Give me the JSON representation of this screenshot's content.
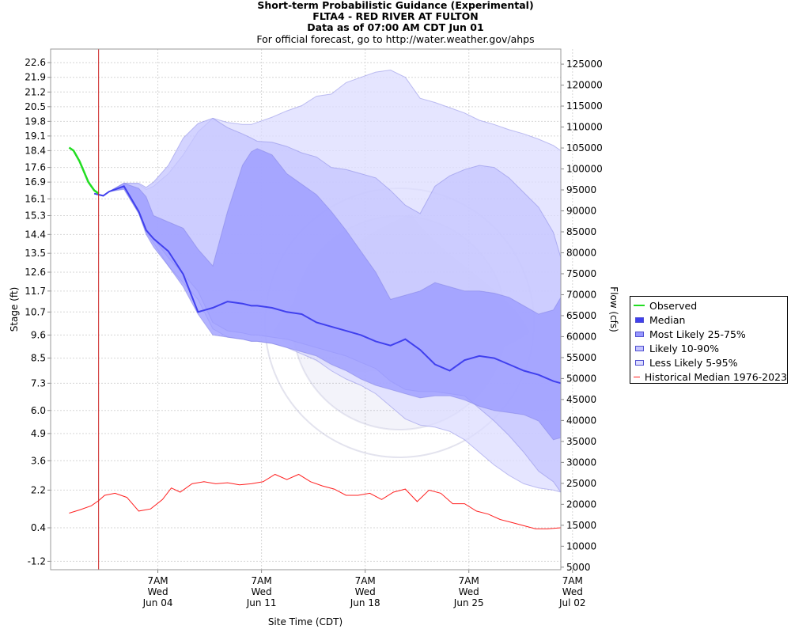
{
  "header": {
    "title": "Short-term Probabilistic Guidance (Experimental)",
    "station": "FLTA4 - RED RIVER AT FULTON",
    "data_as_of": "Data as of 07:00 AM CDT Jun 01",
    "official_note": "For official forecast, go to http://water.weather.gov/ahps"
  },
  "chart_data": {
    "type": "area",
    "title": "Short-term Probabilistic Guidance (Experimental)",
    "subtitle": "FLTA4 - RED RIVER AT FULTON",
    "xlabel": "Site Time (CDT)",
    "ylabel": "Stage (ft)",
    "y2label": "Flow (cfs)",
    "xlim_days_from_may30": [
      -0.95,
      33.5
    ],
    "ylim_stage": [
      -1.6,
      23.25
    ],
    "ylim_flow": [
      4400,
      128600
    ],
    "grid": true,
    "legend_position": "right",
    "y_ticks": [
      -1.2,
      0.4,
      2.2,
      3.6,
      4.9,
      6.0,
      7.3,
      8.5,
      9.6,
      10.7,
      11.7,
      12.6,
      13.5,
      14.4,
      15.3,
      16.1,
      16.9,
      17.6,
      18.4,
      19.1,
      19.8,
      20.5,
      21.2,
      21.9,
      22.6
    ],
    "y2_ticks": [
      5000,
      10000,
      15000,
      20000,
      25000,
      30000,
      35000,
      40000,
      45000,
      50000,
      55000,
      60000,
      65000,
      70000,
      75000,
      80000,
      85000,
      90000,
      95000,
      100000,
      105000,
      110000,
      115000,
      120000,
      125000
    ],
    "x_ticks": [
      {
        "day": 6.29,
        "lines": [
          "7AM",
          "Wed",
          "Jun 04"
        ]
      },
      {
        "day": 13.29,
        "lines": [
          "7AM",
          "Wed",
          "Jun 11"
        ]
      },
      {
        "day": 20.29,
        "lines": [
          "7AM",
          "Wed",
          "Jun 18"
        ]
      },
      {
        "day": 27.29,
        "lines": [
          "7AM",
          "Wed",
          "Jun 25"
        ]
      },
      {
        "day": 34.29,
        "lines": [
          "7AM",
          "Wed",
          "Jul 02"
        ]
      }
    ],
    "current_time_day": 2.29,
    "x": [
      0.3,
      1.0,
      2.0,
      2.6,
      3.0,
      4.0,
      5.0,
      5.5,
      6.0,
      7.0,
      8.0,
      9.0,
      10.0,
      11.0,
      12.0,
      12.6,
      13.0,
      14.0,
      15.0,
      16.0,
      17.0,
      18.0,
      19.0,
      20.0,
      21.0,
      22.0,
      23.0,
      24.0,
      25.0,
      26.0,
      27.0,
      28.0,
      29.0,
      30.0,
      31.0,
      32.0,
      33.0,
      33.5
    ],
    "series": [
      {
        "name": "Observed",
        "color": "#22dd22",
        "x": [
          0.3,
          0.6,
          1.0,
          1.3,
          1.6,
          2.0,
          2.3
        ],
        "values": [
          18.55,
          18.4,
          17.9,
          17.4,
          16.9,
          16.5,
          16.35
        ]
      },
      {
        "name": "Less Likely 5-95%",
        "color": "#dcdcff",
        "upper": [
          null,
          null,
          16.35,
          16.25,
          16.45,
          16.85,
          16.8,
          16.55,
          16.7,
          17.3,
          18.2,
          19.3,
          19.95,
          19.75,
          19.65,
          19.65,
          19.75,
          20.0,
          20.3,
          20.55,
          21.0,
          21.1,
          21.65,
          21.9,
          22.15,
          22.25,
          21.9,
          20.9,
          20.7,
          20.45,
          20.2,
          19.85,
          19.65,
          19.4,
          19.2,
          18.95,
          18.65,
          18.4
        ],
        "lower": [
          null,
          null,
          16.35,
          16.25,
          16.45,
          16.6,
          15.4,
          14.5,
          14.0,
          12.9,
          12.1,
          11.3,
          9.9,
          9.5,
          9.4,
          9.3,
          9.3,
          9.2,
          9.0,
          8.7,
          8.4,
          7.9,
          7.5,
          7.2,
          6.8,
          6.2,
          5.6,
          5.3,
          5.2,
          5.0,
          4.6,
          4.0,
          3.4,
          2.9,
          2.5,
          2.3,
          2.2,
          2.1
        ]
      },
      {
        "name": "Likely 10-90%",
        "color": "#c4c4ff",
        "upper": [
          null,
          null,
          16.35,
          16.25,
          16.45,
          16.85,
          16.85,
          16.65,
          16.9,
          17.7,
          19.0,
          19.7,
          19.95,
          19.5,
          19.2,
          19.0,
          18.85,
          18.8,
          18.6,
          18.3,
          18.1,
          17.6,
          17.5,
          17.3,
          17.1,
          16.5,
          15.8,
          15.4,
          16.7,
          17.2,
          17.5,
          17.7,
          17.6,
          17.1,
          16.4,
          15.7,
          14.5,
          13.3
        ],
        "lower": [
          null,
          null,
          16.35,
          16.25,
          16.45,
          16.6,
          15.45,
          14.7,
          14.2,
          13.3,
          12.5,
          11.7,
          10.2,
          9.8,
          9.7,
          9.6,
          9.6,
          9.5,
          9.4,
          9.2,
          9.0,
          8.8,
          8.6,
          8.3,
          8.0,
          7.4,
          7.0,
          6.9,
          6.9,
          6.8,
          6.7,
          6.1,
          5.5,
          4.8,
          4.0,
          3.1,
          2.6,
          2.1
        ]
      },
      {
        "name": "Most Likely 25-75%",
        "color": "#9898ff",
        "upper": [
          null,
          null,
          16.35,
          16.25,
          16.45,
          16.85,
          16.6,
          16.2,
          15.3,
          15.0,
          14.7,
          13.7,
          12.9,
          15.5,
          17.7,
          18.35,
          18.5,
          18.2,
          17.3,
          16.8,
          16.3,
          15.5,
          14.6,
          13.6,
          12.6,
          11.3,
          11.5,
          11.7,
          12.1,
          11.9,
          11.7,
          11.7,
          11.6,
          11.4,
          11.0,
          10.6,
          10.8,
          11.4
        ],
        "lower": [
          null,
          null,
          16.35,
          16.25,
          16.45,
          16.55,
          15.4,
          14.4,
          13.8,
          12.9,
          11.9,
          10.6,
          9.6,
          9.5,
          9.4,
          9.3,
          9.3,
          9.2,
          9.0,
          8.8,
          8.6,
          8.2,
          7.9,
          7.5,
          7.2,
          7.0,
          6.8,
          6.6,
          6.7,
          6.7,
          6.5,
          6.2,
          6.0,
          5.9,
          5.8,
          5.5,
          4.6,
          4.7
        ]
      },
      {
        "name": "Median",
        "color": "#4040ee",
        "values": [
          null,
          null,
          16.35,
          16.25,
          16.45,
          16.7,
          15.5,
          14.6,
          14.2,
          13.6,
          12.5,
          10.7,
          10.9,
          11.2,
          11.1,
          11.0,
          11.0,
          10.9,
          10.7,
          10.6,
          10.2,
          10.0,
          9.8,
          9.6,
          9.3,
          9.1,
          9.4,
          8.9,
          8.2,
          7.9,
          8.4,
          8.6,
          8.5,
          8.2,
          7.9,
          7.7,
          7.4,
          7.3
        ]
      },
      {
        "name": "Historical Median 1976-2023",
        "color": "#ff2020",
        "x": [
          0.3,
          1.0,
          1.8,
          2.3,
          2.7,
          3.4,
          4.2,
          5.0,
          5.8,
          6.6,
          7.2,
          7.8,
          8.6,
          9.4,
          10.2,
          11.0,
          11.8,
          12.6,
          13.4,
          14.2,
          15.0,
          15.8,
          16.6,
          17.4,
          18.2,
          19.0,
          19.8,
          20.6,
          21.4,
          22.2,
          23.0,
          23.8,
          24.6,
          25.4,
          26.2,
          27.0,
          27.8,
          28.6,
          29.4,
          30.2,
          31.0,
          31.8,
          32.6,
          33.5
        ],
        "values": [
          1.1,
          1.25,
          1.45,
          1.7,
          1.95,
          2.05,
          1.85,
          1.2,
          1.3,
          1.75,
          2.3,
          2.1,
          2.5,
          2.6,
          2.5,
          2.55,
          2.45,
          2.5,
          2.6,
          2.95,
          2.7,
          2.95,
          2.6,
          2.4,
          2.25,
          1.95,
          1.95,
          2.05,
          1.75,
          2.1,
          2.25,
          1.65,
          2.2,
          2.05,
          1.55,
          1.55,
          1.2,
          1.05,
          0.8,
          0.65,
          0.5,
          0.35,
          0.35,
          0.4
        ]
      }
    ]
  },
  "legend": {
    "items": [
      {
        "label": "Observed",
        "color": "#22dd22",
        "kind": "line"
      },
      {
        "label": "Median",
        "color": "#4040ee",
        "kind": "box"
      },
      {
        "label": "Most Likely 25-75%",
        "color": "#9898ff",
        "kind": "box"
      },
      {
        "label": "Likely 10-90%",
        "color": "#c4c4ff",
        "kind": "box"
      },
      {
        "label": "Less Likely 5-95%",
        "color": "#dcdcff",
        "kind": "box"
      },
      {
        "label": "Historical Median 1976-2023",
        "color": "#ff2020",
        "kind": "line"
      }
    ]
  }
}
